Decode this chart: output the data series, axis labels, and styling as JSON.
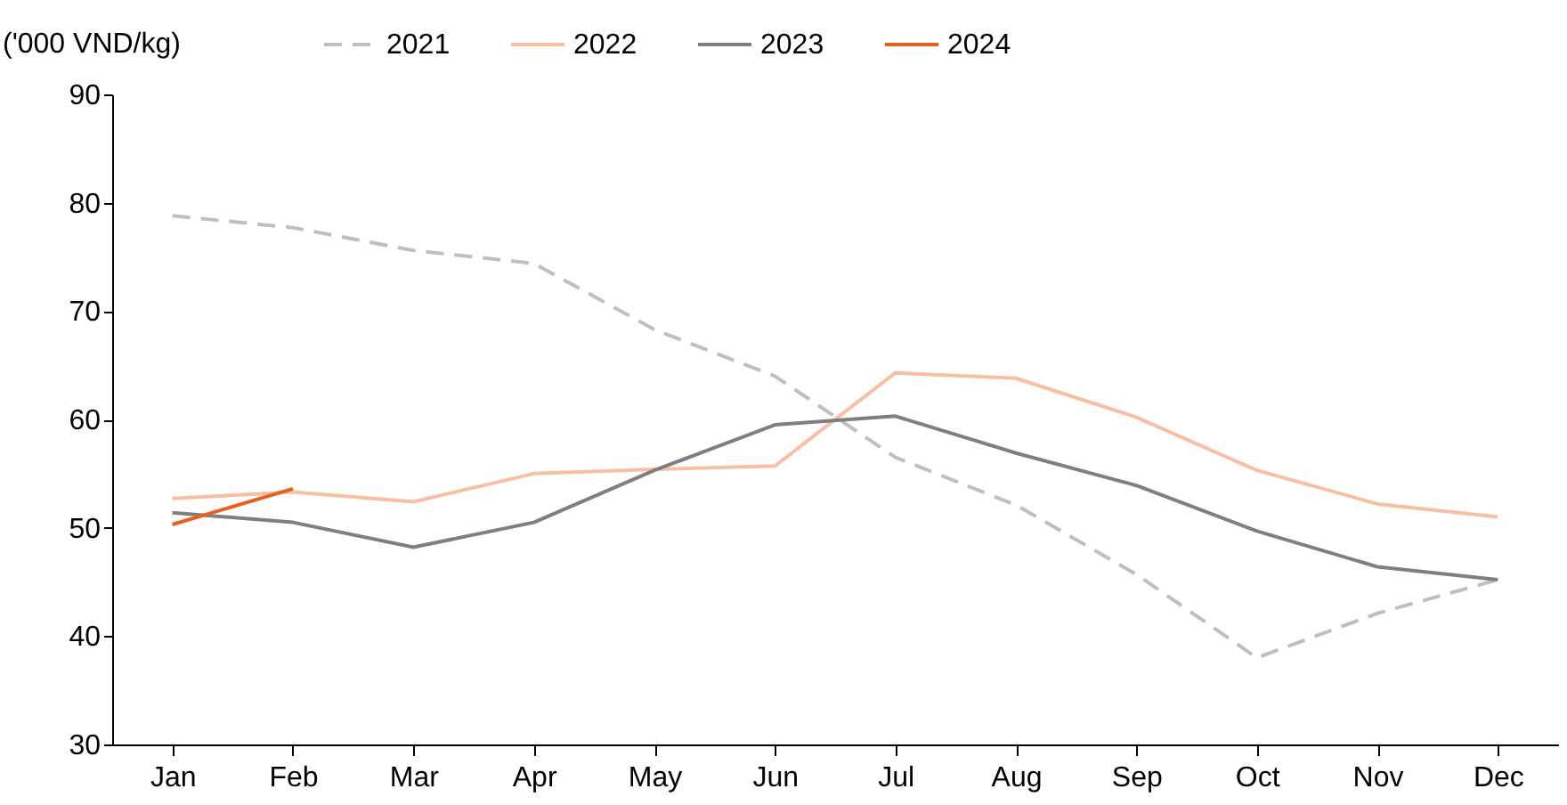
{
  "chart_data": {
    "type": "line",
    "ylabel": "('000 VND/kg)",
    "categories": [
      "Jan",
      "Feb",
      "Mar",
      "Apr",
      "May",
      "Jun",
      "Jul",
      "Aug",
      "Sep",
      "Oct",
      "Nov",
      "Dec"
    ],
    "series": [
      {
        "name": "2021",
        "color": "#bfbfbf",
        "line_style": "dashed",
        "values": [
          78.8,
          77.7,
          75.6,
          74.4,
          68.3,
          64.0,
          56.5,
          52.1,
          45.7,
          38.0,
          42.1,
          45.2
        ]
      },
      {
        "name": "2022",
        "color": "#f9bfa3",
        "values": [
          52.7,
          53.3,
          52.4,
          55.0,
          55.4,
          55.7,
          64.3,
          63.8,
          60.2,
          55.3,
          52.2,
          51.0
        ]
      },
      {
        "name": "2023",
        "color": "#7f7f7f",
        "values": [
          51.4,
          50.5,
          48.2,
          50.5,
          55.3,
          59.5,
          60.3,
          56.9,
          53.9,
          49.7,
          46.4,
          45.2
        ]
      },
      {
        "name": "2024",
        "color": "#e8601c",
        "values": [
          50.3,
          53.6,
          null,
          null,
          null,
          null,
          null,
          null,
          null,
          null,
          null,
          null
        ]
      }
    ],
    "ylim": [
      30,
      90
    ],
    "yticks": [
      30,
      40,
      50,
      60,
      70,
      80,
      90
    ],
    "grid": false,
    "legend": "top",
    "marker": "none",
    "line_style": "solid"
  }
}
